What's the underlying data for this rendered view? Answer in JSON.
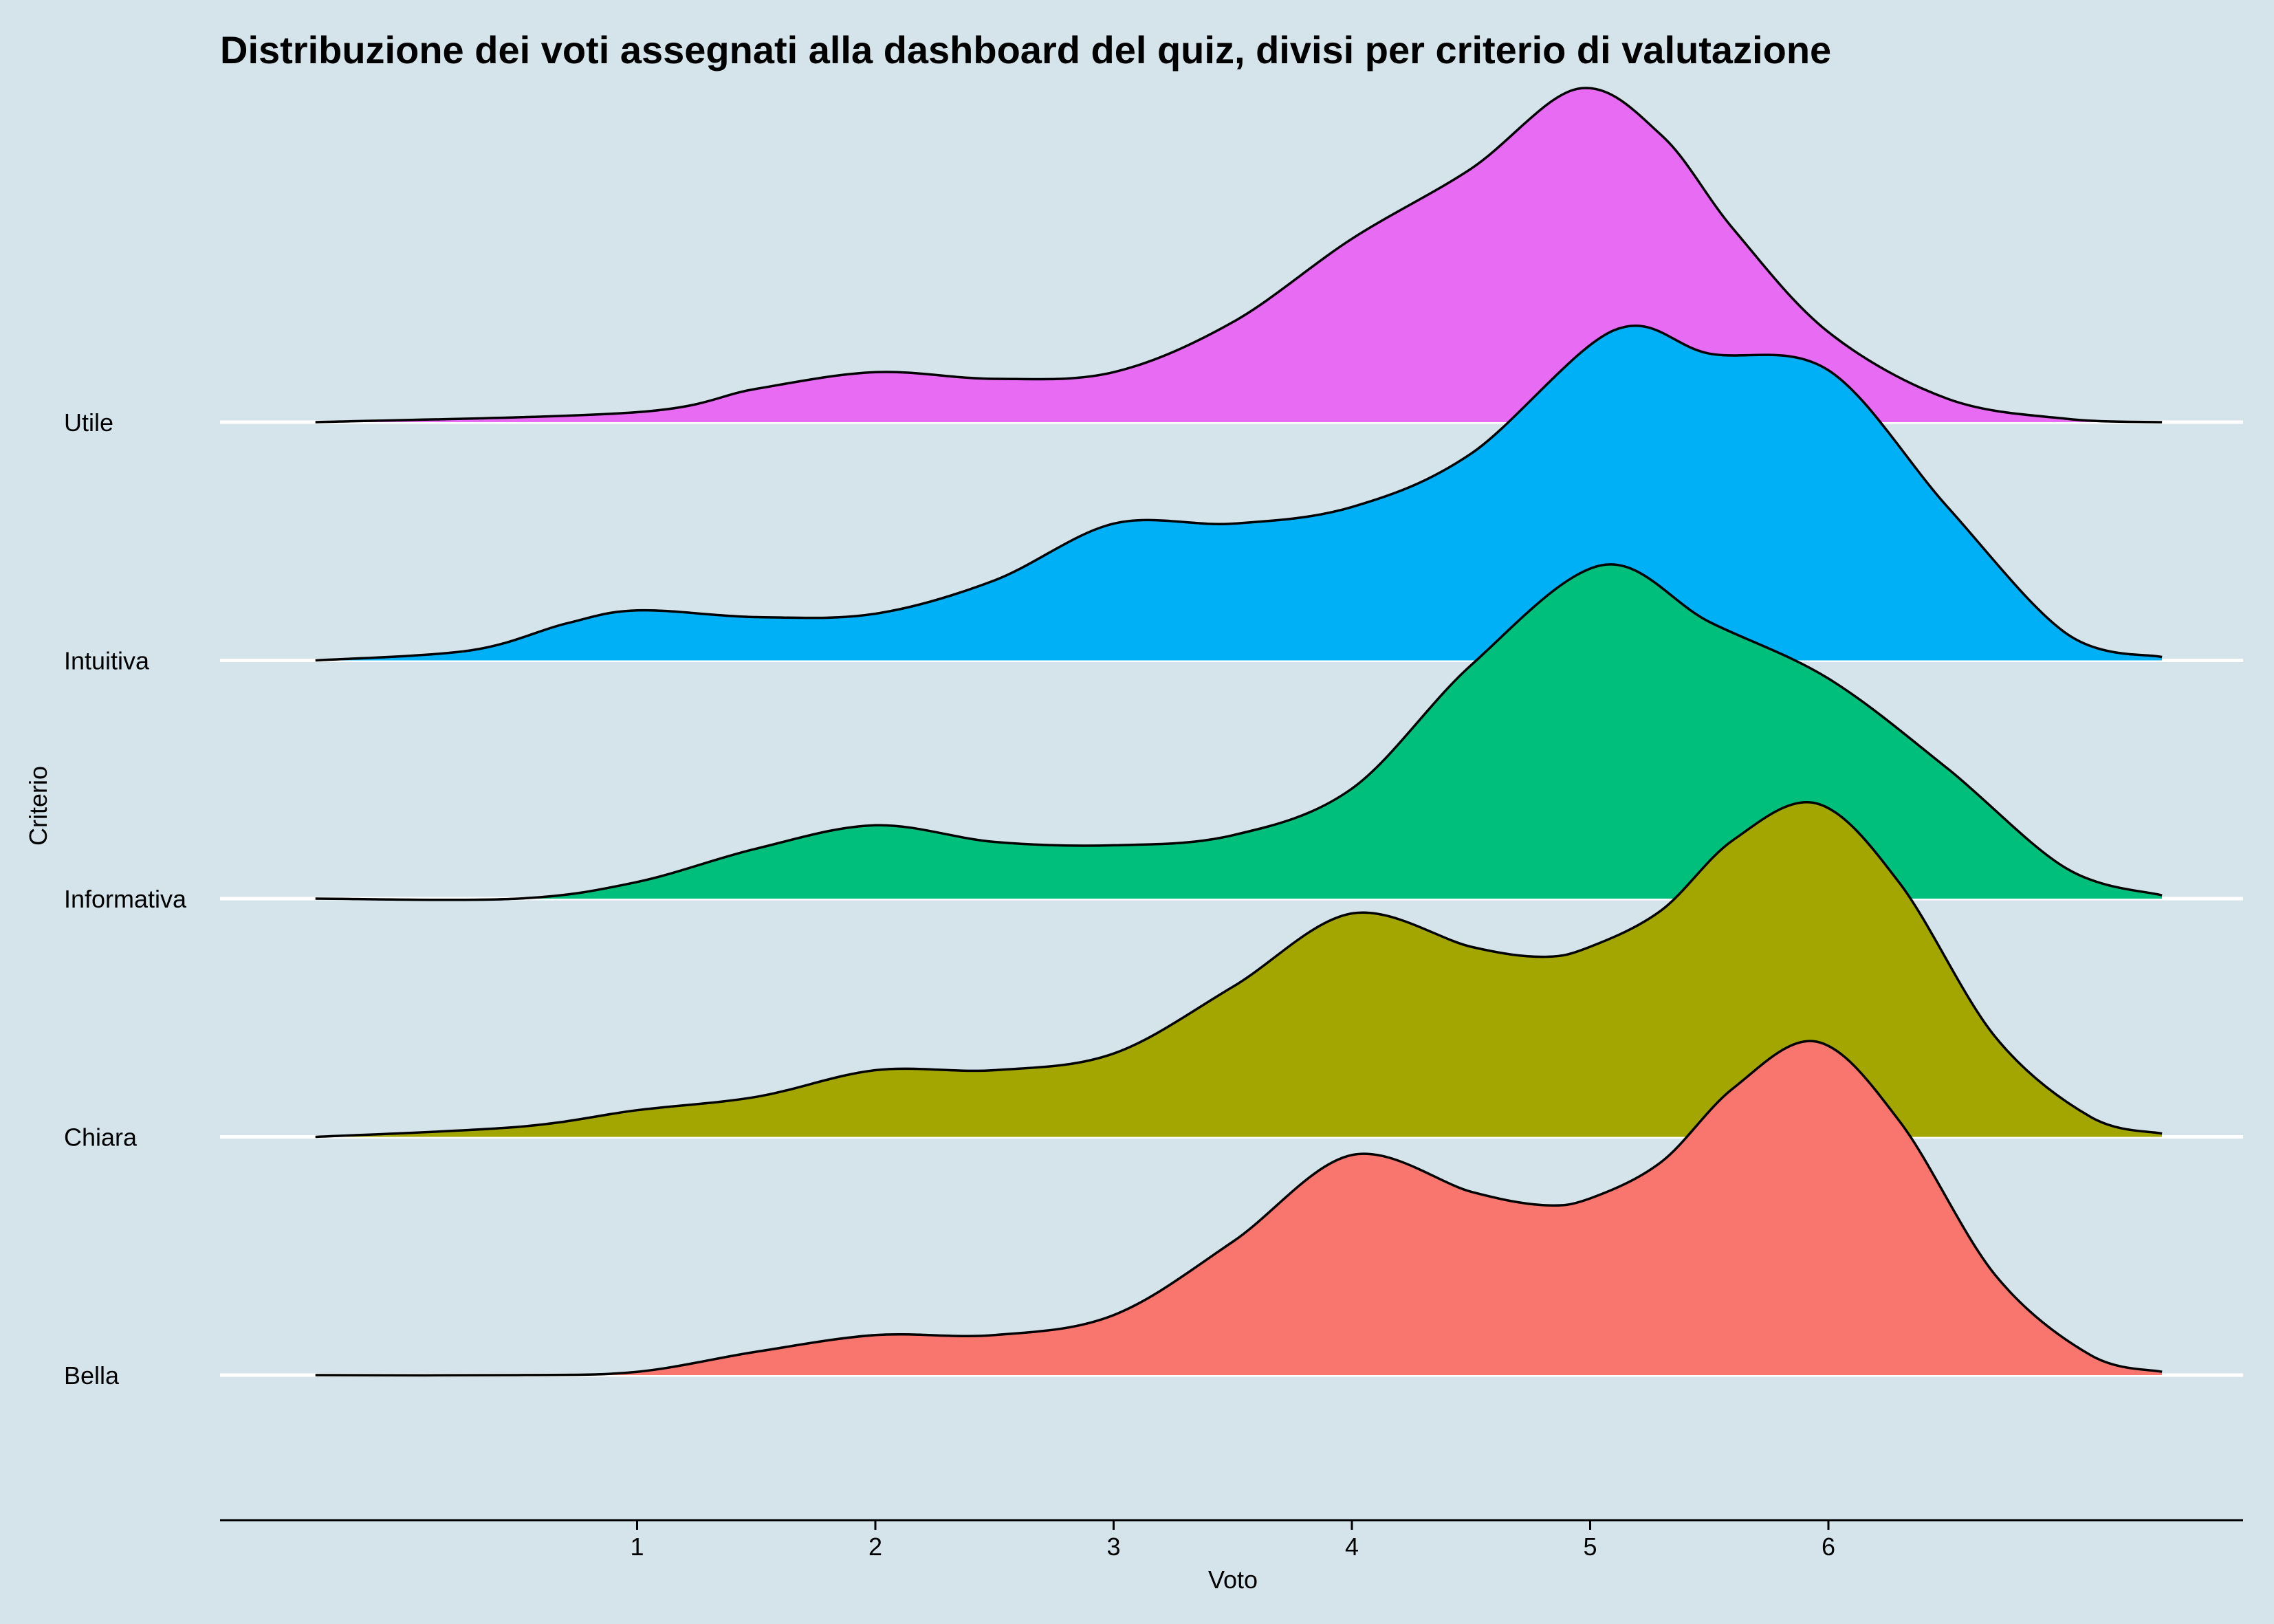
{
  "chart_data": {
    "type": "ridgeline",
    "title": "Distribuzione dei voti assegnati alla dashboard del quiz, divisi per criterio di valutazione",
    "xlabel": "Voto",
    "ylabel": "Criterio",
    "xticks": [
      1,
      2,
      3,
      4,
      5,
      6
    ],
    "xlim": [
      -0.38,
      7.7
    ],
    "series": [
      {
        "name": "Bella",
        "color": "#F8766D",
        "x": [
          -0.35,
          0.5,
          1.0,
          1.5,
          2.0,
          2.5,
          3.0,
          3.5,
          4.0,
          4.5,
          4.8,
          5.0,
          5.3,
          5.6,
          5.95,
          6.3,
          6.7,
          7.1,
          7.4
        ],
        "density": [
          0.0,
          0.0,
          0.01,
          0.07,
          0.12,
          0.12,
          0.18,
          0.4,
          0.66,
          0.55,
          0.51,
          0.53,
          0.64,
          0.86,
          1.0,
          0.76,
          0.3,
          0.06,
          0.01
        ]
      },
      {
        "name": "Chiara",
        "color": "#A3A500",
        "x": [
          -0.35,
          0.5,
          1.0,
          1.5,
          2.0,
          2.5,
          3.0,
          3.5,
          4.0,
          4.5,
          4.8,
          5.0,
          5.3,
          5.6,
          5.95,
          6.3,
          6.7,
          7.1,
          7.4
        ],
        "density": [
          0.0,
          0.03,
          0.08,
          0.12,
          0.2,
          0.2,
          0.25,
          0.45,
          0.67,
          0.57,
          0.54,
          0.57,
          0.68,
          0.89,
          1.0,
          0.76,
          0.3,
          0.06,
          0.01
        ]
      },
      {
        "name": "Informativa",
        "color": "#00BF7D",
        "x": [
          -0.35,
          0.5,
          1.0,
          1.5,
          2.0,
          2.5,
          3.0,
          3.5,
          4.0,
          4.5,
          5.05,
          5.5,
          6.0,
          6.5,
          7.0,
          7.4
        ],
        "density": [
          0.0,
          0.0,
          0.05,
          0.15,
          0.22,
          0.17,
          0.16,
          0.19,
          0.33,
          0.7,
          1.0,
          0.83,
          0.66,
          0.39,
          0.09,
          0.01
        ]
      },
      {
        "name": "Intuitiva",
        "color": "#00B0F6",
        "x": [
          -0.35,
          0.3,
          0.7,
          1.0,
          1.5,
          2.0,
          2.5,
          3.0,
          3.5,
          4.0,
          4.5,
          5.1,
          5.5,
          6.0,
          6.5,
          7.0,
          7.4
        ],
        "density": [
          0.0,
          0.03,
          0.11,
          0.15,
          0.13,
          0.14,
          0.24,
          0.41,
          0.41,
          0.46,
          0.62,
          0.99,
          0.92,
          0.87,
          0.46,
          0.08,
          0.01
        ]
      },
      {
        "name": "Utile",
        "color": "#E76BF3",
        "x": [
          -0.35,
          1.0,
          1.5,
          2.0,
          2.5,
          3.0,
          3.5,
          4.0,
          4.5,
          4.95,
          5.3,
          5.6,
          6.0,
          6.5,
          7.0,
          7.4
        ],
        "density": [
          0.0,
          0.03,
          0.1,
          0.15,
          0.13,
          0.15,
          0.3,
          0.55,
          0.76,
          1.0,
          0.86,
          0.58,
          0.27,
          0.07,
          0.01,
          0.0
        ]
      }
    ]
  }
}
